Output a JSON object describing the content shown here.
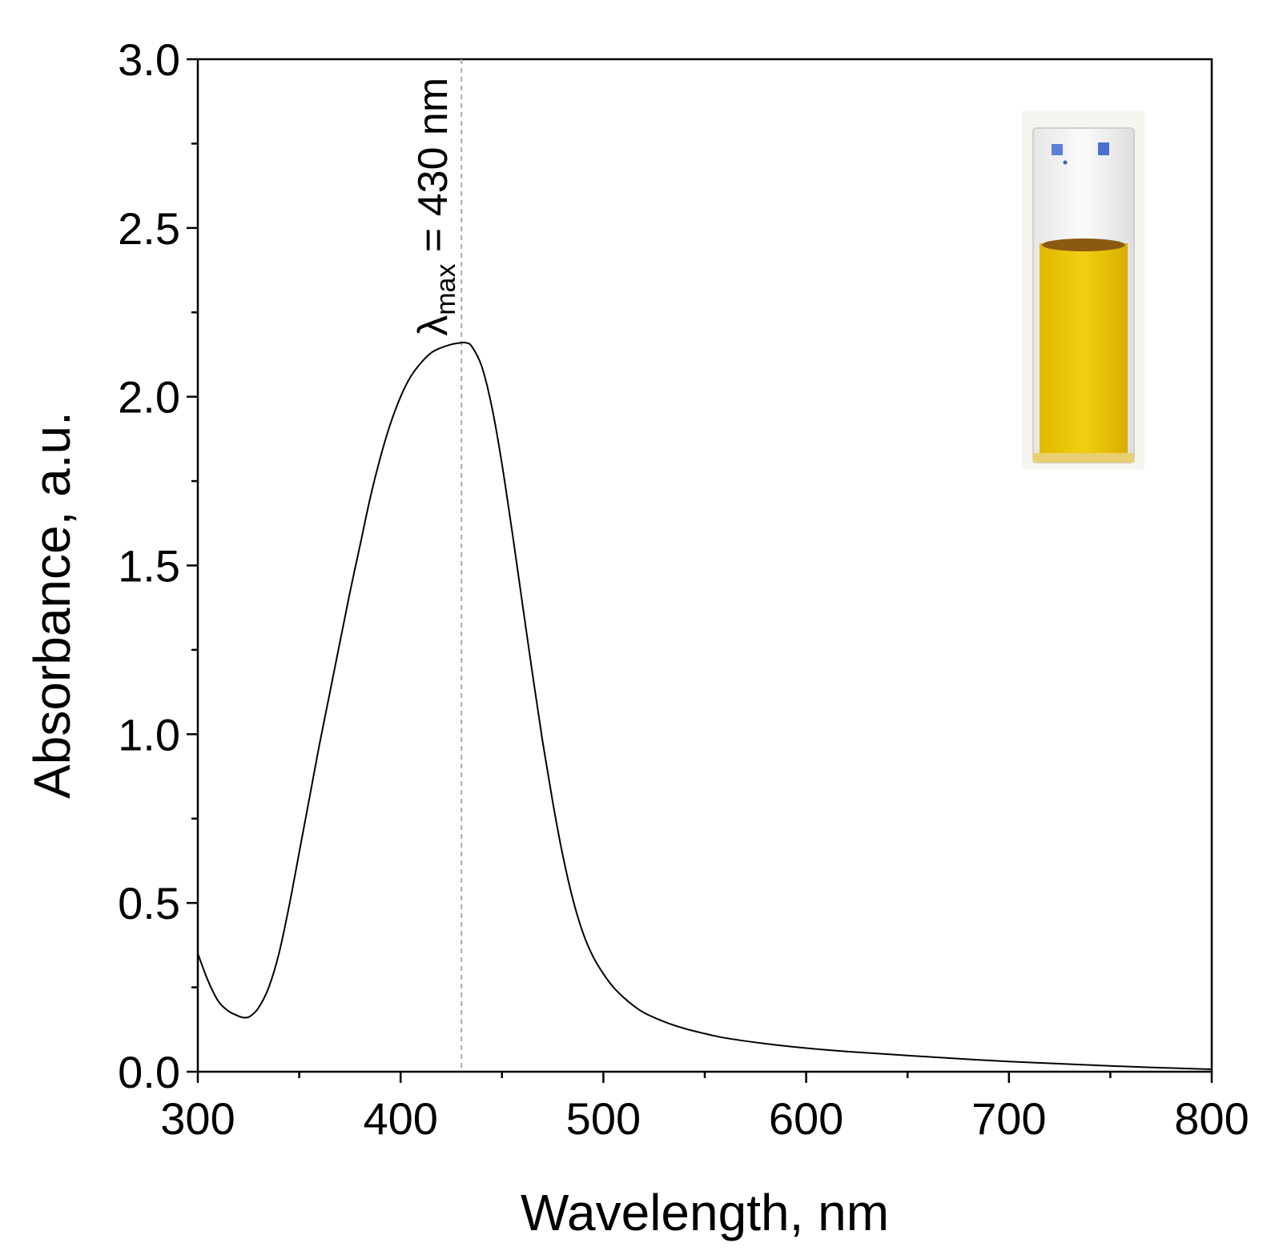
{
  "chart_data": {
    "type": "line",
    "xlabel": "Wavelength, nm",
    "ylabel": "Absorbance, a.u.",
    "xlim": [
      300,
      800
    ],
    "ylim": [
      0.0,
      3.0
    ],
    "x_ticks": [
      "300",
      "400",
      "500",
      "600",
      "700",
      "800"
    ],
    "y_ticks": [
      "0.0",
      "0.5",
      "1.0",
      "1.5",
      "2.0",
      "2.5",
      "3.0"
    ],
    "grid": false,
    "line_color": "#000000",
    "series": [
      {
        "x": [
          300,
          305,
          310,
          315,
          320,
          323,
          326,
          330,
          335,
          340,
          345,
          350,
          355,
          360,
          365,
          370,
          375,
          380,
          385,
          390,
          395,
          400,
          405,
          410,
          415,
          420,
          425,
          430,
          432,
          435,
          440,
          445,
          450,
          455,
          460,
          465,
          470,
          475,
          480,
          485,
          490,
          495,
          500,
          505,
          510,
          515,
          520,
          530,
          540,
          550,
          560,
          580,
          600,
          620,
          650,
          700,
          750,
          800
        ],
        "y": [
          0.35,
          0.27,
          0.21,
          0.18,
          0.165,
          0.16,
          0.165,
          0.19,
          0.25,
          0.35,
          0.49,
          0.65,
          0.81,
          0.97,
          1.12,
          1.27,
          1.42,
          1.56,
          1.7,
          1.82,
          1.92,
          2.0,
          2.06,
          2.1,
          2.13,
          2.145,
          2.155,
          2.16,
          2.16,
          2.15,
          2.09,
          1.97,
          1.8,
          1.6,
          1.39,
          1.18,
          0.98,
          0.8,
          0.64,
          0.51,
          0.41,
          0.34,
          0.29,
          0.25,
          0.22,
          0.195,
          0.175,
          0.148,
          0.128,
          0.113,
          0.1,
          0.083,
          0.07,
          0.06,
          0.048,
          0.03,
          0.017,
          0.007
        ]
      }
    ],
    "annotations": [
      {
        "text_main": "λ",
        "text_sub": "max",
        "text_rest": " = 430 nm",
        "x": 430,
        "style": "dashed vertical line, rotated label"
      }
    ],
    "inset": {
      "description_colors": {
        "solution": "#e6c200",
        "meniscus": "#8a5a10",
        "glass": "#f2f2f2",
        "marks": "#4a6fd0"
      }
    }
  }
}
